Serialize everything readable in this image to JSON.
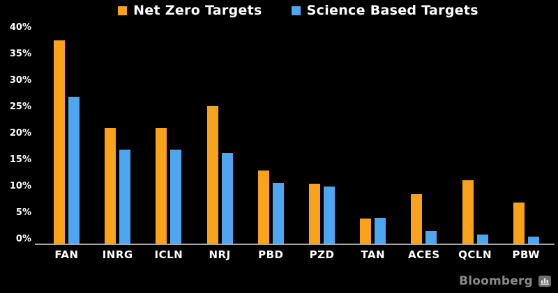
{
  "legend": {
    "items": [
      {
        "label": "Net Zero Targets",
        "color": "#F9A21B"
      },
      {
        "label": "Science Based Targets",
        "color": "#4DA6EF"
      }
    ]
  },
  "chart_data": {
    "type": "bar",
    "categories": [
      "FAN",
      "INRG",
      "ICLN",
      "NRJ",
      "PBD",
      "PZD",
      "TAN",
      "ACES",
      "QCLN",
      "PBW"
    ],
    "series": [
      {
        "name": "Net Zero Targets",
        "color": "#F9A21B",
        "values": [
          37.6,
          21.3,
          21.3,
          25.5,
          13.5,
          11.1,
          4.6,
          9.1,
          11.7,
          7.6
        ]
      },
      {
        "name": "Science Based Targets",
        "color": "#4DA6EF",
        "values": [
          27.1,
          17.4,
          17.3,
          16.7,
          11.2,
          10.5,
          4.8,
          2.3,
          1.7,
          1.3
        ]
      }
    ],
    "title": "",
    "xlabel": "",
    "ylabel": "",
    "ylim": [
      0,
      40
    ],
    "ytick_step": 5,
    "ytick_labels": [
      "0%",
      "5%",
      "10%",
      "15%",
      "20%",
      "25%",
      "30%",
      "35%",
      "40%"
    ],
    "grid": false,
    "legend_position": "top-center",
    "background": "#000000",
    "axis_color": "#A8A8A8",
    "text_color": "#FFFFFF"
  },
  "branding": {
    "logo_text": "Bloomberg",
    "logo_icon": "bar-chart-badge-icon",
    "logo_color": "#8A8A8A"
  }
}
